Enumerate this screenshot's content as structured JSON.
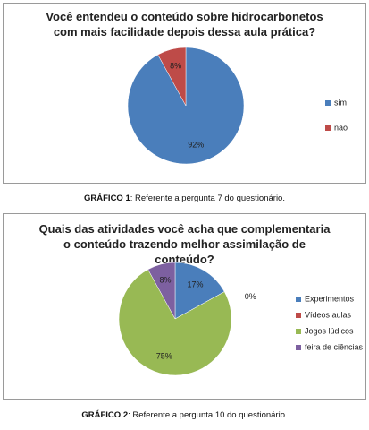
{
  "chart_data": [
    {
      "type": "pie",
      "title": "Você entendeu o conteúdo sobre hidrocarbonetos com mais facilidade depois dessa aula prática?",
      "categories": [
        "sim",
        "não"
      ],
      "values": [
        92,
        8
      ],
      "value_labels": [
        "92%",
        "8%"
      ],
      "colors": [
        "#4a7ebb",
        "#be4b48"
      ],
      "legend": "right"
    },
    {
      "type": "pie",
      "title": "Quais das atividades você acha que complementaria o conteúdo trazendo melhor assimilação de conteúdo?",
      "categories": [
        "Experimentos",
        "Vídeos aulas",
        "Jogos lúdicos",
        "feira de ciências"
      ],
      "values": [
        17,
        0,
        75,
        8
      ],
      "value_labels": [
        "17%",
        "0%",
        "75%",
        "8%"
      ],
      "colors": [
        "#4a7ebb",
        "#be4b48",
        "#98b954",
        "#7d60a0"
      ],
      "legend": "right"
    }
  ],
  "captions": [
    {
      "label": "GRÁFICO 1",
      "text": ": Referente a pergunta 7 do questionário."
    },
    {
      "label": "GRÁFICO 2",
      "text": ": Referente a pergunta 10 do questionário."
    }
  ]
}
